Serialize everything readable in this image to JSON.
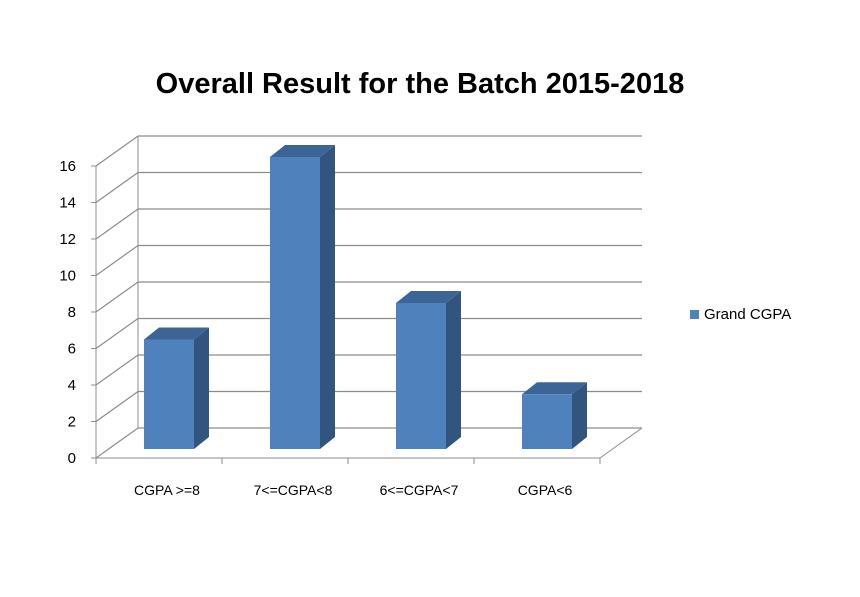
{
  "chart_data": {
    "type": "bar",
    "title": "Overall Result for the Batch 2015-2018",
    "categories": [
      "CGPA >=8",
      "7<=CGPA<8",
      "6<=CGPA<7",
      "CGPA<6"
    ],
    "series": [
      {
        "name": "Grand CGPA",
        "values": [
          6,
          16,
          8,
          3
        ]
      }
    ],
    "ylim": [
      0,
      16
    ],
    "yticks": [
      0,
      2,
      4,
      6,
      8,
      10,
      12,
      14,
      16
    ],
    "legend_position": "right",
    "grid": true,
    "style": "3d-column"
  },
  "colors": {
    "bar_front": "#4f81bd",
    "bar_side": "#32557f",
    "bar_top": "#3c6596",
    "grid": "#8c8c8c"
  }
}
